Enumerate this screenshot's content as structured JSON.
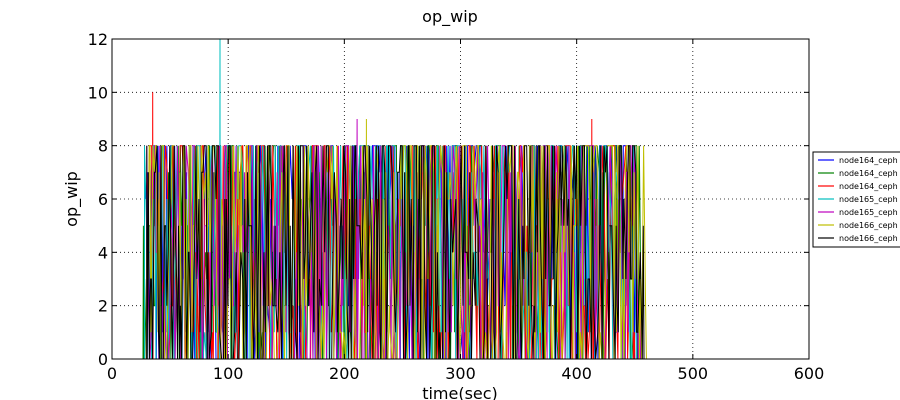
{
  "chart_data": {
    "type": "line",
    "title": "op_wip",
    "xlabel": "time(sec)",
    "ylabel": "op_wip",
    "xlim": [
      0,
      600
    ],
    "ylim": [
      0,
      12
    ],
    "xticks": [
      0,
      100,
      200,
      300,
      400,
      500,
      600
    ],
    "yticks": [
      0,
      2,
      4,
      6,
      8,
      10,
      12
    ],
    "grid": true,
    "legend_position": "right",
    "series": [
      {
        "name": "node164_ceph",
        "color": "#0000ff",
        "start": 28,
        "end": 455,
        "peaks": [
          [
            45,
            8
          ],
          [
            120,
            8
          ],
          [
            400,
            8
          ]
        ]
      },
      {
        "name": "node164_ceph",
        "color": "#008000",
        "start": 26,
        "end": 455,
        "peaks": [
          [
            27,
            5
          ],
          [
            200,
            8
          ]
        ]
      },
      {
        "name": "node164_ceph",
        "color": "#ff0000",
        "start": 30,
        "end": 450,
        "peaks": [
          [
            35,
            10
          ],
          [
            413,
            9
          ]
        ]
      },
      {
        "name": "node165_ceph",
        "color": "#00bfbf",
        "start": 28,
        "end": 452,
        "peaks": [
          [
            93,
            12
          ]
        ]
      },
      {
        "name": "node165_ceph",
        "color": "#bf00bf",
        "start": 30,
        "end": 455,
        "peaks": [
          [
            211,
            9
          ]
        ]
      },
      {
        "name": "node166_ceph",
        "color": "#bfbf00",
        "start": 30,
        "end": 460,
        "peaks": [
          [
            219,
            9
          ]
        ]
      },
      {
        "name": "node166_ceph",
        "color": "#000000",
        "start": 30,
        "end": 458,
        "peaks": [
          [
            30,
            8
          ]
        ]
      }
    ]
  }
}
